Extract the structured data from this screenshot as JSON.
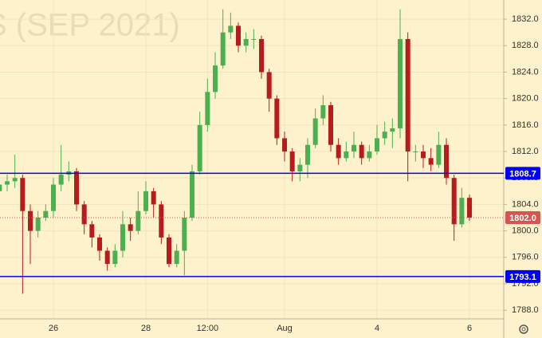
{
  "chart_data": {
    "type": "candlestick",
    "title": "S (SEP 2021)",
    "categories": [
      null,
      null,
      null,
      null,
      null,
      null,
      null,
      "26",
      null,
      null,
      null,
      null,
      null,
      null,
      null,
      null,
      null,
      null,
      null,
      "28",
      null,
      null,
      null,
      null,
      null,
      null,
      null,
      "12:00",
      null,
      null,
      null,
      null,
      null,
      null,
      null,
      null,
      null,
      "Aug",
      null,
      null,
      null,
      null,
      null,
      null,
      null,
      null,
      null,
      null,
      null,
      "4",
      null,
      null,
      null,
      null,
      null,
      null,
      null,
      null,
      null,
      null,
      null,
      "6"
    ],
    "open": [
      1806,
      1807,
      1807.5,
      1808,
      1803,
      1800,
      1802,
      1803,
      1807,
      1808.5,
      1809,
      1804,
      1801,
      1799,
      1797,
      1795,
      1797,
      1801,
      1800,
      1803,
      1806,
      1804,
      1799,
      1795,
      1797,
      1802,
      1809,
      1816,
      1821,
      1825,
      1830,
      1831,
      1828,
      1829,
      1829,
      1824,
      1820,
      1814,
      1812,
      1809,
      1810,
      1813,
      1817,
      1819,
      1813,
      1811,
      1812,
      1813,
      1811,
      1812,
      1814,
      1815,
      1815.5,
      1829,
      1812,
      1812,
      1811,
      1810,
      1813,
      1808,
      1801,
      1805
    ],
    "high": [
      1808,
      1808.5,
      1811.5,
      1808.5,
      1804,
      1803,
      1804,
      1808,
      1813,
      1810.5,
      1809.5,
      1804.5,
      1801.5,
      1799.5,
      1797.5,
      1798,
      1803,
      1802,
      1806,
      1807.5,
      1806.5,
      1804.5,
      1799.5,
      1798,
      1803,
      1810,
      1818,
      1823,
      1827,
      1833.5,
      1833,
      1831.5,
      1830,
      1830.5,
      1829.5,
      1824.5,
      1820.5,
      1815,
      1812.5,
      1811,
      1814,
      1818.5,
      1820.5,
      1819.5,
      1814,
      1813.5,
      1815,
      1813.5,
      1813,
      1816,
      1816.5,
      1817,
      1833.5,
      1830,
      1813,
      1813,
      1812.5,
      1815,
      1814,
      1808.5,
      1806.5,
      1805.5
    ],
    "low": [
      1805,
      1806,
      1806.5,
      1790.5,
      1795,
      1799,
      1801.5,
      1802,
      1806,
      1807.5,
      1803,
      1799.5,
      1797.5,
      1795.5,
      1794,
      1794.5,
      1796,
      1798.5,
      1799.5,
      1802.5,
      1802,
      1798,
      1794.5,
      1794.5,
      1793.3,
      1801.5,
      1808.5,
      1815,
      1820,
      1824.5,
      1829,
      1827,
      1827,
      1827.5,
      1823,
      1818,
      1813,
      1810.5,
      1807.5,
      1807.5,
      1808,
      1812.5,
      1816,
      1812,
      1810,
      1810.5,
      1811,
      1810,
      1810.5,
      1811.5,
      1813,
      1812.5,
      1814,
      1807.5,
      1810.5,
      1809.5,
      1809,
      1809.5,
      1807,
      1798.5,
      1800.5,
      1801.5
    ],
    "close": [
      1807,
      1807.5,
      1808,
      1803,
      1800,
      1802,
      1803,
      1807,
      1808.5,
      1809,
      1804,
      1801,
      1799,
      1797,
      1795,
      1797,
      1801,
      1800,
      1803,
      1806,
      1804,
      1799,
      1795,
      1797,
      1802,
      1809,
      1816,
      1821,
      1825,
      1830,
      1831,
      1828,
      1829,
      1829,
      1824,
      1820,
      1814,
      1812,
      1809,
      1810,
      1813,
      1817,
      1819,
      1813,
      1811,
      1812,
      1813,
      1811,
      1812,
      1814,
      1815,
      1815.5,
      1829,
      1812,
      1812,
      1811,
      1810,
      1813,
      1808,
      1801,
      1805,
      1802
    ],
    "up_color": "#4caf50",
    "down_color": "#b71c1c",
    "ylim": [
      1786.7,
      1834.9
    ],
    "yticks": [
      {
        "value": 1788,
        "label": "1788.0"
      },
      {
        "value": 1792,
        "label": "1792.0"
      },
      {
        "value": 1796,
        "label": "1796.0"
      },
      {
        "value": 1800,
        "label": "1800.0"
      },
      {
        "value": 1804,
        "label": "1804.0"
      },
      {
        "value": 1808,
        "label": "1808.0"
      },
      {
        "value": 1812,
        "label": "1812.0"
      },
      {
        "value": 1816,
        "label": "1816.0"
      },
      {
        "value": 1820,
        "label": "1820.0"
      },
      {
        "value": 1824,
        "label": "1824.0"
      },
      {
        "value": 1828,
        "label": "1828.0"
      },
      {
        "value": 1832,
        "label": "1832.0"
      }
    ],
    "levels": [
      1808.7,
      1793.1
    ],
    "level_color": "#0000ff",
    "last_price": {
      "value": 1802,
      "label": "1802.0"
    },
    "last_price_color": "#d9534f",
    "grid": true
  }
}
